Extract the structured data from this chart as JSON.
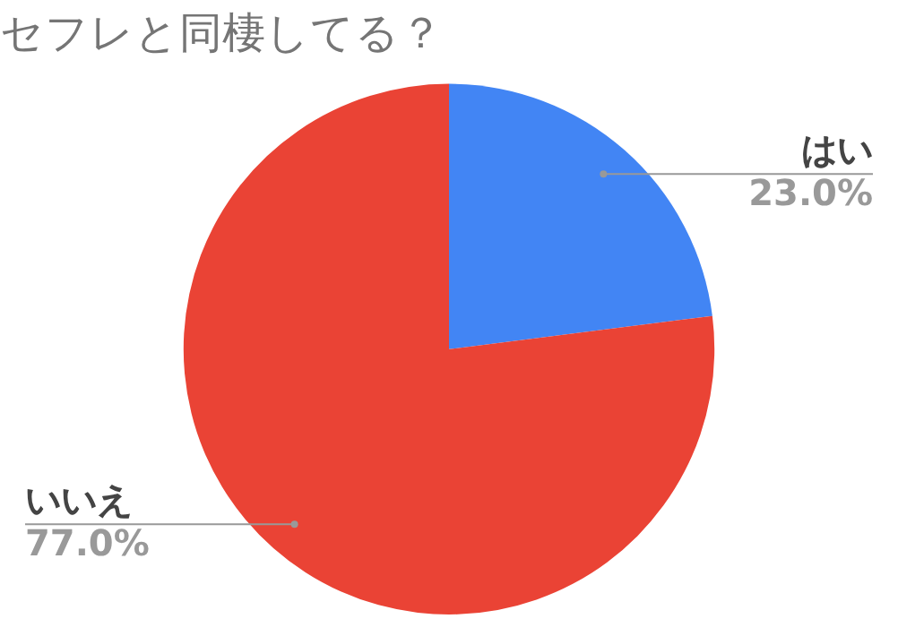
{
  "chart_data": {
    "type": "pie",
    "title": "セフレと同棲してる？",
    "categories": [
      "はい",
      "いいえ"
    ],
    "values": [
      23,
      77
    ],
    "colors": [
      "#4285f4",
      "#ea4335"
    ],
    "value_labels": [
      "23.0%",
      "77.0%"
    ],
    "legend": false
  }
}
